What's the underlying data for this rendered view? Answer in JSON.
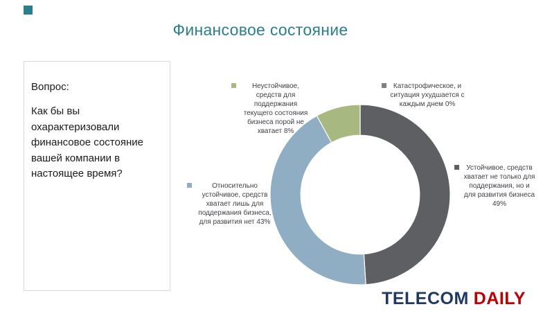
{
  "slide": {
    "title": "Финансовое состояние",
    "accent_color": "#2A7F8E"
  },
  "question_panel": {
    "heading": "Вопрос:",
    "body": "Как бы вы охарактеризовали финансовое состояние вашей компании в настоящее время?"
  },
  "chart_data": {
    "type": "pie",
    "subtype": "donut",
    "title": "",
    "start_angle_deg": 0,
    "direction": "clockwise",
    "hole_ratio": 0.66,
    "legend_position": "data-callouts",
    "series": [
      {
        "name": "Устойчивое, средств хватает не только для поддержания, но и для развития бизнеса",
        "value": 49,
        "unit": "%",
        "color": "#5E5F62",
        "label": "Устойчивое, средств хватает не только для поддержания, но и для развития бизнеса 49%"
      },
      {
        "name": "Относительно устойчивое, средств хватает лишь для поддержания бизнеса, для развития нет",
        "value": 43,
        "unit": "%",
        "color": "#8FAEC3",
        "label": "Относительно устойчивое, средств хватает лишь для поддержания бизнеса, для развития нет 43%"
      },
      {
        "name": "Неустойчивое, средств для поддержания текущего состояния бизнеса порой не хватает",
        "value": 8,
        "unit": "%",
        "color": "#A7B880",
        "label": "Неустойчивое, средств для поддержания текущего состояния бизнеса порой не хватает 8%"
      },
      {
        "name": "Катастрофическое, и ситуация ухудшается с каждым днем",
        "value": 0,
        "unit": "%",
        "color": "#7F7F7F",
        "label": "Катастрофическое, и ситуация ухудшается с каждым днем 0%"
      }
    ]
  },
  "logo": {
    "part1": "TELECOM",
    "part2": "DAILY",
    "part1_color": "#1F3864",
    "part2_color": "#C00000"
  }
}
